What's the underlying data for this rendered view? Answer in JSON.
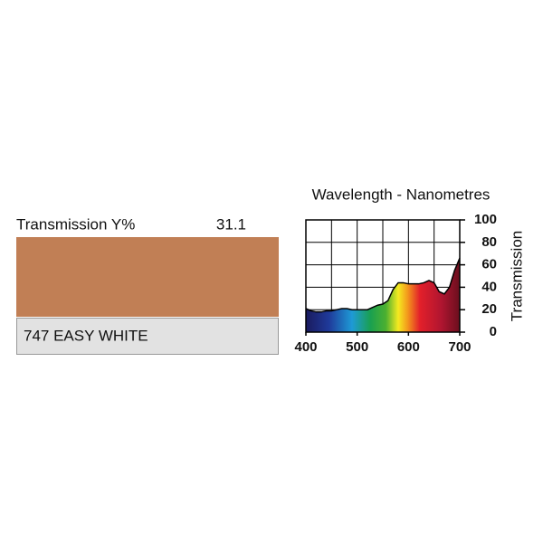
{
  "swatch": {
    "label": "Transmission Y%",
    "transmission": 31.1,
    "name": "747 EASY WHITE",
    "color": "#c17f55"
  },
  "chart_data": {
    "type": "area",
    "title": "Wavelength - Nanometres",
    "y_label": "Transmission",
    "x": [
      400,
      410,
      420,
      430,
      440,
      450,
      460,
      470,
      480,
      490,
      500,
      510,
      520,
      530,
      540,
      550,
      560,
      570,
      580,
      590,
      600,
      610,
      620,
      630,
      640,
      650,
      660,
      670,
      680,
      690,
      700
    ],
    "values": [
      21,
      19,
      18,
      18,
      19,
      19,
      20,
      21,
      21,
      20,
      20,
      20,
      20,
      22,
      24,
      25,
      28,
      38,
      44,
      44,
      43,
      43,
      43,
      44,
      46,
      44,
      36,
      34,
      40,
      55,
      66
    ],
    "xlim": [
      400,
      700
    ],
    "ylim": [
      0,
      100
    ],
    "xticks": [
      400,
      500,
      600,
      700
    ],
    "yticks": [
      0,
      20,
      40,
      60,
      80,
      100
    ],
    "xgrid": [
      400,
      450,
      500,
      550,
      600,
      650,
      700
    ],
    "grid": true
  }
}
